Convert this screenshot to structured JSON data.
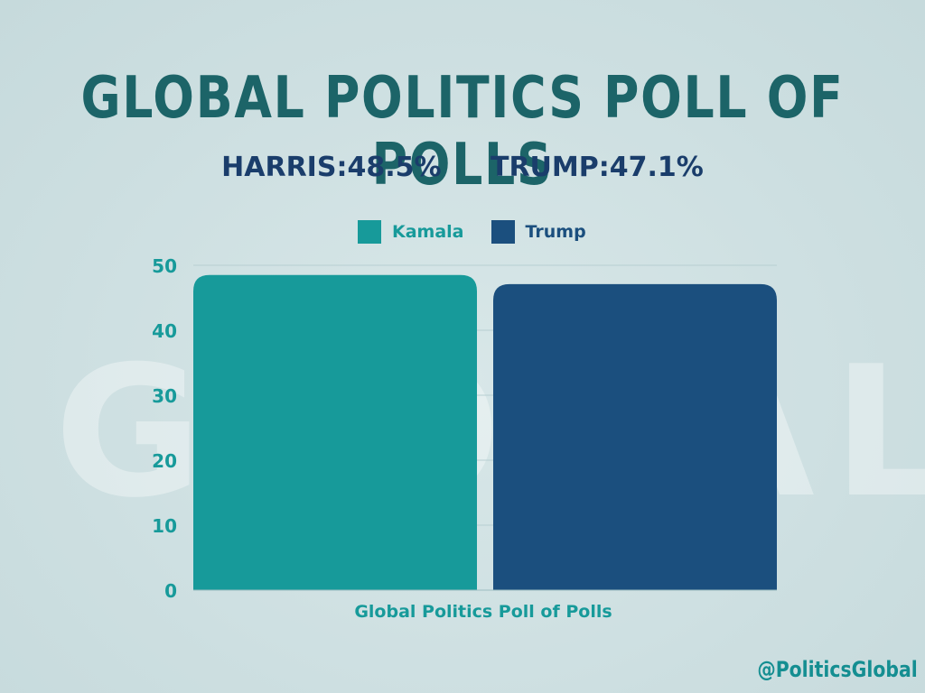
{
  "header": {
    "title": "GLOBAL POLITICS POLL OF POLLS",
    "harris_result": "HARRIS:48.5%",
    "trump_result": "TRUMP:47.1%"
  },
  "watermark": {
    "text": "GLOBAL"
  },
  "footer": {
    "handle": "@PoliticsGlobal"
  },
  "colors": {
    "kamala": "#179a9a",
    "trump": "#1b4f7e",
    "title": "#1c6468",
    "axis_text": "#179a9a"
  },
  "chart_data": {
    "type": "bar",
    "categories": [
      "Global Politics Poll of Polls"
    ],
    "xlabel": "Global Politics Poll of Polls",
    "ylabel": "",
    "ylim": [
      0,
      50
    ],
    "yticks": [
      0,
      10,
      20,
      30,
      40,
      50
    ],
    "grid": true,
    "legend": "top-center",
    "series": [
      {
        "name": "Kamala",
        "values": [
          48.5
        ],
        "color": "#179a9a"
      },
      {
        "name": "Trump",
        "values": [
          47.1
        ],
        "color": "#1b4f7e"
      }
    ]
  }
}
